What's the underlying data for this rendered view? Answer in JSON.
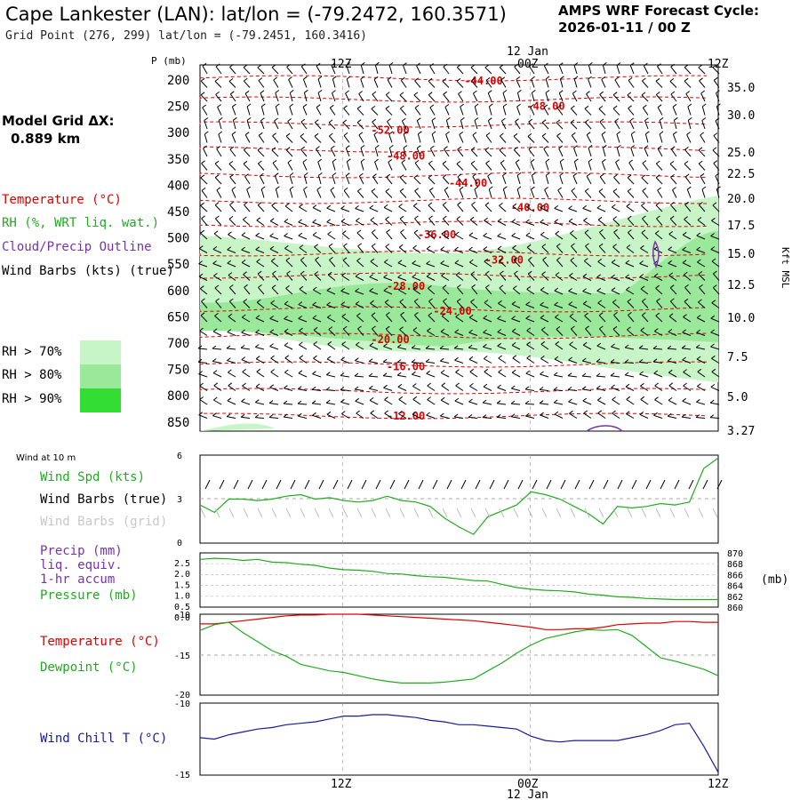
{
  "header": {
    "title": "Cape Lankester (LAN):  lat/lon = (-79.2472, 160.3571)",
    "grid_point": "Grid Point (276, 299) lat/lon = (-79.2451, 160.3416)",
    "cycle_label": "AMPS WRF Forecast Cycle:",
    "cycle_value": "2026-01-11 / 00  Z",
    "model_grid_label": "Model Grid ΔX:",
    "model_grid_value": "0.889 km"
  },
  "colors": {
    "temperature": "#dd0000",
    "rh": "#22aa22",
    "cloud": "#7733aa",
    "windchill": "#1a1a99",
    "rh70": "#c8f5c8",
    "rh80": "#9ae89a",
    "rh90": "#33dd33"
  },
  "legend": {
    "temperature": "Temperature (°C)",
    "rh": "RH (%, WRT liq. wat.)",
    "cloud": "Cloud/Precip Outline",
    "wind": "Wind Barbs (kts) (true)",
    "rh70": "RH > 70%",
    "rh80": "RH > 80%",
    "rh90": "RH > 90%"
  },
  "time_axis": {
    "top_labels": [
      "12Z",
      "00Z",
      "12Z"
    ],
    "bottom_labels": [
      "12Z",
      "00Z",
      "12Z"
    ],
    "date": "12 Jan"
  },
  "chart_data": [
    {
      "type": "contour",
      "name": "cross-section",
      "ylabel": "P (mb)",
      "pressure_levels": [
        "200",
        "250",
        "300",
        "350",
        "400",
        "450",
        "500",
        "550",
        "600",
        "650",
        "700",
        "750",
        "800",
        "850"
      ],
      "height_ticks": [
        "35.0",
        "30.0",
        "25.0",
        "22.5",
        "20.0",
        "17.5",
        "15.0",
        "12.5",
        "10.0",
        "7.5",
        "5.0",
        "3.27"
      ],
      "height_label": "Kft MSL",
      "temperature_labels": [
        {
          "text": "-44.00",
          "t": 0.51,
          "p": 197
        },
        {
          "text": "-48.00",
          "t": 0.63,
          "p": 243
        },
        {
          "text": "-52.00",
          "t": 0.33,
          "p": 287
        },
        {
          "text": "-48.00",
          "t": 0.36,
          "p": 334
        },
        {
          "text": "-44.00",
          "t": 0.48,
          "p": 384
        },
        {
          "text": "-40.00",
          "t": 0.6,
          "p": 429
        },
        {
          "text": "-36.00",
          "t": 0.42,
          "p": 478
        },
        {
          "text": "-32.00",
          "t": 0.55,
          "p": 525
        },
        {
          "text": "-28.00",
          "t": 0.36,
          "p": 573
        },
        {
          "text": "-24.00",
          "t": 0.45,
          "p": 618
        },
        {
          "text": "-20.00",
          "t": 0.33,
          "p": 670
        },
        {
          "text": "-16.00",
          "t": 0.36,
          "p": 720
        },
        {
          "text": "-12.00",
          "t": 0.36,
          "p": 810
        }
      ]
    },
    {
      "type": "line",
      "name": "wind10m",
      "header": "Wind at 10 m",
      "legend": [
        "Wind Spd (kts)",
        "Wind Barbs (true)",
        "Wind Barbs (grid)"
      ],
      "yticks": [
        "6",
        "3",
        "0"
      ],
      "ylim": [
        0,
        6
      ],
      "y": [
        2.6,
        2.1,
        3.0,
        3.0,
        2.9,
        3.0,
        3.2,
        3.3,
        3.0,
        3.1,
        2.9,
        2.8,
        2.9,
        3.2,
        2.9,
        2.8,
        2.5,
        1.7,
        1.1,
        0.6,
        1.8,
        2.2,
        2.6,
        3.5,
        3.3,
        3.0,
        2.5,
        2.0,
        1.3,
        2.5,
        2.4,
        2.5,
        2.7,
        2.6,
        2.8,
        5.1,
        5.8
      ]
    },
    {
      "type": "line",
      "name": "precip-pressure",
      "legend": [
        "Precip (mm)",
        "liq. equiv.",
        "1-hr accum",
        "Pressure (mb)"
      ],
      "yticks_left": [
        "2.5",
        "2.0",
        "1.5",
        "1.0",
        "0.5",
        "0.0"
      ],
      "yticks_right": [
        "870",
        "868",
        "866",
        "864",
        "862",
        "860"
      ],
      "right_unit": "(mb)",
      "ylim_left": [
        0,
        2.5
      ],
      "ylim_right": [
        860,
        870
      ],
      "pressure": [
        868.8,
        869.0,
        868.9,
        868.6,
        868.8,
        868.3,
        868.2,
        867.9,
        867.7,
        867.2,
        866.9,
        866.8,
        866.6,
        866.2,
        866.1,
        865.8,
        865.6,
        865.5,
        865.2,
        864.9,
        864.8,
        864.2,
        863.6,
        863.3,
        863.1,
        863.0,
        862.8,
        862.4,
        862.2,
        861.9,
        861.8,
        861.6,
        861.5,
        861.4,
        861.4,
        861.4,
        861.4
      ]
    },
    {
      "type": "line",
      "name": "temp-dewpoint",
      "legend": [
        "Temperature (°C)",
        "Dewpoint (°C)"
      ],
      "yticks": [
        "-10",
        "-15",
        "-20"
      ],
      "ylim": [
        -20,
        -10
      ],
      "temperature": [
        -11.2,
        -11.2,
        -11.0,
        -10.8,
        -10.6,
        -10.4,
        -10.2,
        -10.1,
        -10.1,
        -10.0,
        -10.0,
        -10.0,
        -10.1,
        -10.2,
        -10.3,
        -10.4,
        -10.5,
        -10.6,
        -10.7,
        -10.8,
        -11.0,
        -11.2,
        -11.4,
        -11.6,
        -11.9,
        -11.9,
        -11.8,
        -11.8,
        -11.6,
        -11.3,
        -11.2,
        -11.1,
        -11.1,
        -10.9,
        -10.9,
        -11.0,
        -11.0
      ],
      "dewpoint": [
        -12.0,
        -11.3,
        -11.0,
        -12.3,
        -13.4,
        -14.5,
        -15.2,
        -16.2,
        -16.6,
        -17.0,
        -17.2,
        -17.6,
        -18.0,
        -18.3,
        -18.5,
        -18.5,
        -18.5,
        -18.4,
        -18.2,
        -18.0,
        -17.0,
        -16.0,
        -14.8,
        -13.8,
        -13.0,
        -12.6,
        -12.2,
        -11.9,
        -12.0,
        -11.9,
        -12.6,
        -14.0,
        -15.4,
        -15.8,
        -16.3,
        -16.8,
        -17.6
      ]
    },
    {
      "type": "line",
      "name": "windchill",
      "legend": [
        "Wind Chill T (°C)"
      ],
      "yticks": [
        "-10",
        "-15"
      ],
      "ylim": [
        -15,
        -10
      ],
      "y": [
        -12.4,
        -12.5,
        -12.2,
        -12.0,
        -11.8,
        -11.7,
        -11.5,
        -11.4,
        -11.3,
        -11.1,
        -10.9,
        -10.9,
        -10.8,
        -10.8,
        -10.9,
        -11.0,
        -11.2,
        -11.3,
        -11.5,
        -11.5,
        -11.6,
        -11.7,
        -11.8,
        -12.3,
        -12.6,
        -12.7,
        -12.6,
        -12.6,
        -12.6,
        -12.6,
        -12.4,
        -12.2,
        -11.9,
        -11.5,
        -11.4,
        -13.0,
        -14.8
      ]
    }
  ]
}
